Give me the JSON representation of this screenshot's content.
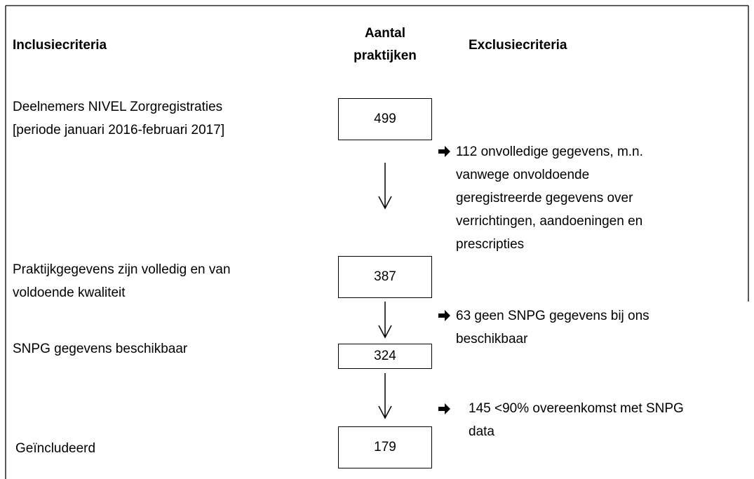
{
  "header": {
    "inclusion": "Inclusiecriteria",
    "count": [
      "Aantal",
      "praktijken"
    ],
    "exclusion": "Exclusiecriteria"
  },
  "steps": [
    {
      "inclusion": [
        "Deelnemers NIVEL Zorgregistraties",
        "[periode januari 2016-februari 2017]"
      ],
      "count": 499
    },
    {
      "inclusion": [
        "Praktijkgegevens zijn volledig en van",
        "voldoende kwaliteit"
      ],
      "count": 387
    },
    {
      "inclusion": [
        "SNPG gegevens beschikbaar"
      ],
      "count": 324
    },
    {
      "inclusion": [
        "Geïncludeerd"
      ],
      "count": 179
    }
  ],
  "exclusions": [
    {
      "lines": [
        "112 onvolledige gegevens, m.n.",
        "vanwege onvoldoende",
        "geregistreerde gegevens over",
        "verrichtingen, aandoeningen en",
        "prescripties"
      ]
    },
    {
      "lines": [
        "63 geen SNPG gegevens bij ons",
        "beschikbaar"
      ]
    },
    {
      "lines": [
        "145 <90% overeenkomst met SNPG",
        "data"
      ]
    }
  ]
}
